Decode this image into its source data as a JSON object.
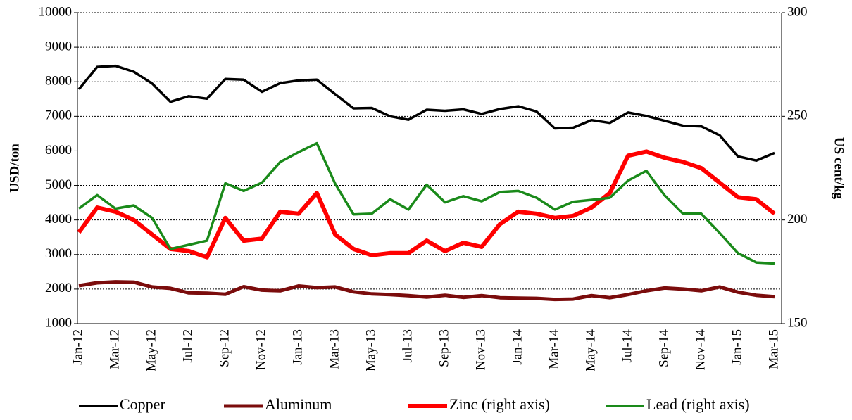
{
  "chart_data": {
    "type": "line",
    "ylabel": "USD/ton",
    "y2label": "US cent/kg",
    "categories": [
      "Jan-12",
      null,
      "Mar-12",
      null,
      "May-12",
      null,
      "Jul-12",
      null,
      "Sep-12",
      null,
      "Nov-12",
      null,
      "Jan-13",
      null,
      "Mar-13",
      null,
      "May-13",
      null,
      "Jul-13",
      null,
      "Sep-13",
      null,
      "Nov-13",
      null,
      "Jan-14",
      null,
      "Mar-14",
      null,
      "May-14",
      null,
      "Jul-14",
      null,
      "Sep-14",
      null,
      "Nov-14",
      null,
      "Jan-15",
      null,
      "Mar-15"
    ],
    "ylim": [
      1000,
      10000
    ],
    "yticks": [
      1000,
      2000,
      3000,
      4000,
      5000,
      6000,
      7000,
      8000,
      9000,
      10000
    ],
    "y2lim": [
      150,
      300
    ],
    "y2ticks": [
      150,
      200,
      250,
      300
    ],
    "grid": true,
    "legend": "bottom",
    "series": [
      {
        "name": "Copper",
        "color": "#000000",
        "width": 3.5,
        "values": [
          7780,
          8430,
          8460,
          8290,
          7950,
          7420,
          7580,
          7510,
          8080,
          8060,
          7710,
          7960,
          8040,
          8060,
          7640,
          7230,
          7240,
          7000,
          6900,
          7190,
          7160,
          7200,
          7070,
          7210,
          7290,
          7140,
          6650,
          6670,
          6890,
          6810,
          7110,
          7010,
          6870,
          6730,
          6710,
          6450,
          5840,
          5720,
          5940
        ]
      },
      {
        "name": "Aluminum",
        "color": "#7b0c0c",
        "width": 5,
        "values": [
          2100,
          2180,
          2210,
          2200,
          2060,
          2020,
          1890,
          1880,
          1850,
          2070,
          1970,
          1950,
          2090,
          2040,
          2060,
          1920,
          1860,
          1840,
          1810,
          1770,
          1820,
          1760,
          1810,
          1750,
          1740,
          1730,
          1700,
          1710,
          1810,
          1750,
          1840,
          1950,
          2030,
          2000,
          1950,
          2060,
          1910,
          1820,
          1780
        ]
      },
      {
        "name": "Zinc (right axis)",
        "color": "#ff0000",
        "width": 6,
        "axis": "y2",
        "values": [
          194,
          206,
          204,
          200,
          193,
          186,
          185,
          182,
          201,
          190,
          191,
          204,
          203,
          213,
          193,
          186,
          183,
          184,
          184,
          190,
          185,
          189,
          187,
          198,
          204,
          203,
          201,
          202,
          206,
          213,
          231,
          233,
          230,
          228,
          225,
          218,
          211,
          210,
          203
        ]
      },
      {
        "name": "Lead (right axis)",
        "color": "#1a8a1a",
        "width": 3.5,
        "axis": "y2",
        "values": [
          205.5,
          212,
          205.5,
          207,
          201,
          186,
          188,
          190,
          217.7,
          214,
          218,
          228,
          232.7,
          237,
          217.5,
          202.7,
          203,
          210,
          205,
          217,
          208.5,
          211.5,
          209,
          213.5,
          214,
          210.7,
          205,
          208.8,
          209.7,
          210.7,
          219,
          223.7,
          211.8,
          203,
          203,
          193.7,
          184,
          179.5,
          179
        ]
      }
    ]
  }
}
